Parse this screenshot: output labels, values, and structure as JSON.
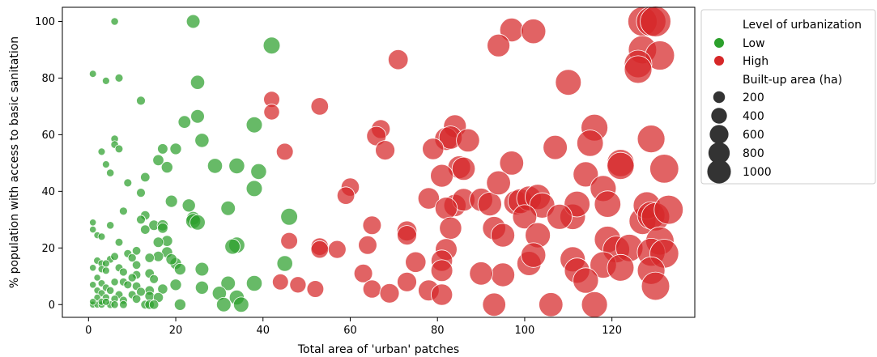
{
  "chart_data": {
    "type": "scatter",
    "title": "",
    "xlabel": "Total area of 'urban' patches",
    "ylabel": "% population with access to basic sanitation",
    "xlim": [
      -6,
      139
    ],
    "ylim": [
      -4.5,
      105
    ],
    "x_ticks": [
      0,
      20,
      40,
      60,
      80,
      100,
      120
    ],
    "y_ticks": [
      0,
      20,
      40,
      60,
      80,
      100
    ],
    "grid": false,
    "legend": {
      "placement": "outside-right",
      "hue_title": "Level of urbanization",
      "size_title": "Built-up area (ha)",
      "size_entries": [
        200,
        400,
        600,
        800,
        1000
      ]
    },
    "series": [
      {
        "name": "Low",
        "color": "#2ca02c",
        "points": [
          [
            6,
            100,
            25
          ],
          [
            24,
            100,
            120
          ],
          [
            1,
            81.5,
            20
          ],
          [
            4,
            79,
            22
          ],
          [
            7,
            80,
            30
          ],
          [
            12,
            72,
            40
          ],
          [
            25,
            78.5,
            130
          ],
          [
            42,
            91.5,
            200
          ],
          [
            22,
            64.5,
            100
          ],
          [
            25,
            66.5,
            120
          ],
          [
            38,
            63.5,
            180
          ],
          [
            26,
            58,
            130
          ],
          [
            6,
            58.5,
            25
          ],
          [
            6,
            56.5,
            25
          ],
          [
            7,
            55,
            28
          ],
          [
            3,
            54,
            22
          ],
          [
            17,
            55,
            60
          ],
          [
            20,
            55,
            80
          ],
          [
            16,
            51,
            70
          ],
          [
            18,
            48.5,
            80
          ],
          [
            5,
            46.5,
            25
          ],
          [
            4,
            49.5,
            22
          ],
          [
            13,
            45,
            45
          ],
          [
            9,
            43,
            30
          ],
          [
            29,
            49,
            150
          ],
          [
            34,
            49,
            170
          ],
          [
            39,
            47,
            170
          ],
          [
            12,
            39.5,
            40
          ],
          [
            38,
            41,
            180
          ],
          [
            19,
            36.5,
            90
          ],
          [
            23,
            35,
            110
          ],
          [
            8,
            33,
            30
          ],
          [
            32,
            34,
            140
          ],
          [
            24,
            30.5,
            120
          ],
          [
            24,
            29.5,
            150
          ],
          [
            25,
            29,
            160
          ],
          [
            46,
            31,
            200
          ],
          [
            1,
            29,
            18
          ],
          [
            5,
            28,
            25
          ],
          [
            13,
            31.5,
            45
          ],
          [
            15,
            28,
            60
          ],
          [
            17,
            28,
            70
          ],
          [
            17,
            27,
            60
          ],
          [
            12,
            30,
            40
          ],
          [
            13,
            26.5,
            45
          ],
          [
            1,
            26.5,
            18
          ],
          [
            2,
            24.5,
            18
          ],
          [
            3,
            24,
            22
          ],
          [
            18,
            22.5,
            70
          ],
          [
            16,
            22,
            60
          ],
          [
            7,
            22,
            28
          ],
          [
            34,
            21,
            180
          ],
          [
            33,
            20.5,
            160
          ],
          [
            11,
            19,
            35
          ],
          [
            18,
            18.5,
            70
          ],
          [
            16,
            17,
            60
          ],
          [
            9,
            18,
            30
          ],
          [
            10,
            16.5,
            32
          ],
          [
            14,
            16.5,
            45
          ],
          [
            5,
            16,
            25
          ],
          [
            2,
            15.5,
            22
          ],
          [
            3,
            14.5,
            22
          ],
          [
            6,
            17,
            28
          ],
          [
            20,
            14.5,
            80
          ],
          [
            19,
            16,
            70
          ],
          [
            45,
            14.5,
            170
          ],
          [
            4,
            14.5,
            22
          ],
          [
            1,
            13,
            18
          ],
          [
            3,
            12.5,
            20
          ],
          [
            7,
            13,
            28
          ],
          [
            21,
            12.5,
            80
          ],
          [
            26,
            12.5,
            120
          ],
          [
            11,
            14,
            35
          ],
          [
            4,
            12,
            22
          ],
          [
            8,
            11.5,
            30
          ],
          [
            14,
            11,
            45
          ],
          [
            11,
            10.5,
            35
          ],
          [
            2,
            9.5,
            18
          ],
          [
            10,
            9.5,
            32
          ],
          [
            15,
            9,
            40
          ],
          [
            6,
            8,
            25
          ],
          [
            1,
            7,
            18
          ],
          [
            3,
            7.5,
            20
          ],
          [
            8,
            8,
            30
          ],
          [
            9,
            7,
            30
          ],
          [
            4,
            6,
            22
          ],
          [
            11,
            6.5,
            35
          ],
          [
            5,
            5,
            25
          ],
          [
            2,
            5,
            18
          ],
          [
            14,
            5,
            45
          ],
          [
            17,
            5.5,
            55
          ],
          [
            20,
            7,
            80
          ],
          [
            26,
            6,
            110
          ],
          [
            32,
            7.5,
            140
          ],
          [
            38,
            7.5,
            170
          ],
          [
            3,
            4,
            20
          ],
          [
            7,
            3.5,
            28
          ],
          [
            10,
            3.5,
            30
          ],
          [
            12,
            4.5,
            40
          ],
          [
            14,
            3,
            45
          ],
          [
            2,
            2.5,
            18
          ],
          [
            4,
            2.5,
            22
          ],
          [
            6,
            2,
            25
          ],
          [
            8,
            1.5,
            30
          ],
          [
            11,
            2,
            35
          ],
          [
            16,
            2.5,
            55
          ],
          [
            30,
            4,
            130
          ],
          [
            34,
            2.5,
            150
          ],
          [
            1,
            0,
            18
          ],
          [
            2,
            0,
            18
          ],
          [
            3,
            0,
            20
          ],
          [
            5,
            0,
            25
          ],
          [
            6,
            0,
            25
          ],
          [
            8,
            0,
            28
          ],
          [
            13,
            0,
            40
          ],
          [
            14,
            0,
            45
          ],
          [
            15,
            0,
            45
          ],
          [
            21,
            0,
            80
          ],
          [
            31,
            0,
            140
          ],
          [
            35,
            0,
            160
          ],
          [
            1,
            1,
            18
          ],
          [
            3,
            1,
            20
          ],
          [
            4,
            1,
            22
          ]
        ]
      },
      {
        "name": "High",
        "color": "#d62728",
        "points": [
          [
            127,
            100,
            700
          ],
          [
            129,
            100,
            720
          ],
          [
            130,
            100,
            780
          ],
          [
            97,
            97,
            440
          ],
          [
            102,
            96.5,
            480
          ],
          [
            94,
            91.5,
            400
          ],
          [
            71,
            86.5,
            300
          ],
          [
            127,
            90,
            650
          ],
          [
            131,
            88,
            700
          ],
          [
            126,
            85,
            620
          ],
          [
            126,
            83,
            620
          ],
          [
            110,
            78.5,
            530
          ],
          [
            42,
            72.5,
            180
          ],
          [
            42,
            68,
            170
          ],
          [
            53,
            70,
            220
          ],
          [
            116,
            62.5,
            580
          ],
          [
            84,
            63,
            400
          ],
          [
            82,
            58.5,
            410
          ],
          [
            83,
            59,
            420
          ],
          [
            87,
            58,
            420
          ],
          [
            67,
            62,
            260
          ],
          [
            66,
            59.5,
            280
          ],
          [
            68,
            54.5,
            280
          ],
          [
            79,
            55,
            350
          ],
          [
            107,
            55.5,
            460
          ],
          [
            115,
            57,
            560
          ],
          [
            129,
            58.5,
            620
          ],
          [
            45,
            54,
            200
          ],
          [
            85,
            48.5,
            400
          ],
          [
            86,
            48,
            420
          ],
          [
            97,
            50,
            450
          ],
          [
            81,
            45.5,
            400
          ],
          [
            114,
            46,
            500
          ],
          [
            122,
            50,
            600
          ],
          [
            122,
            49,
            590
          ],
          [
            132,
            48,
            680
          ],
          [
            60,
            41.5,
            240
          ],
          [
            59,
            38.5,
            220
          ],
          [
            78,
            37.5,
            350
          ],
          [
            84,
            35,
            380
          ],
          [
            86,
            37,
            400
          ],
          [
            90,
            37,
            420
          ],
          [
            92,
            35.5,
            440
          ],
          [
            94,
            43,
            450
          ],
          [
            98,
            36,
            470
          ],
          [
            99,
            36.5,
            480
          ],
          [
            101,
            37.5,
            490
          ],
          [
            103,
            38,
            510
          ],
          [
            104,
            35,
            510
          ],
          [
            111,
            31,
            520
          ],
          [
            112,
            35.5,
            530
          ],
          [
            118,
            41,
            540
          ],
          [
            119,
            35.5,
            560
          ],
          [
            127,
            29.5,
            580
          ],
          [
            128,
            35,
            600
          ],
          [
            129,
            31.5,
            620
          ],
          [
            130,
            31,
            650
          ],
          [
            133,
            33.5,
            690
          ],
          [
            65,
            28,
            250
          ],
          [
            73,
            26,
            300
          ],
          [
            73,
            24.5,
            280
          ],
          [
            82,
            34,
            380
          ],
          [
            83,
            27,
            380
          ],
          [
            93,
            27,
            420
          ],
          [
            95,
            24.5,
            440
          ],
          [
            100,
            31,
            460
          ],
          [
            103,
            24.5,
            500
          ],
          [
            46,
            22.5,
            200
          ],
          [
            64,
            21,
            250
          ],
          [
            53,
            20.5,
            220
          ],
          [
            53,
            19.5,
            220
          ],
          [
            57,
            19.5,
            230
          ],
          [
            82,
            19.5,
            360
          ],
          [
            81,
            15.5,
            350
          ],
          [
            75,
            15,
            320
          ],
          [
            108,
            31,
            500
          ],
          [
            119,
            23,
            560
          ],
          [
            121,
            19.5,
            580
          ],
          [
            124,
            20,
            600
          ],
          [
            131,
            22.5,
            650
          ],
          [
            129,
            18.5,
            630
          ],
          [
            132,
            18,
            680
          ],
          [
            111,
            16,
            500
          ],
          [
            112,
            12,
            510
          ],
          [
            118,
            14,
            560
          ],
          [
            122,
            13,
            580
          ],
          [
            129,
            12,
            620
          ],
          [
            130,
            6.5,
            650
          ],
          [
            101,
            14.5,
            460
          ],
          [
            102,
            17.5,
            480
          ],
          [
            95,
            10.5,
            440
          ],
          [
            90,
            11,
            420
          ],
          [
            81,
            12,
            360
          ],
          [
            63,
            11,
            250
          ],
          [
            65,
            5.5,
            240
          ],
          [
            73,
            8,
            280
          ],
          [
            69,
            4,
            280
          ],
          [
            78,
            5,
            330
          ],
          [
            81,
            3.5,
            350
          ],
          [
            44,
            8,
            180
          ],
          [
            48,
            7,
            190
          ],
          [
            52,
            5.5,
            200
          ],
          [
            93,
            0,
            420
          ],
          [
            106,
            0,
            450
          ],
          [
            116,
            0,
            540
          ],
          [
            114,
            8.5,
            520
          ]
        ]
      }
    ]
  }
}
